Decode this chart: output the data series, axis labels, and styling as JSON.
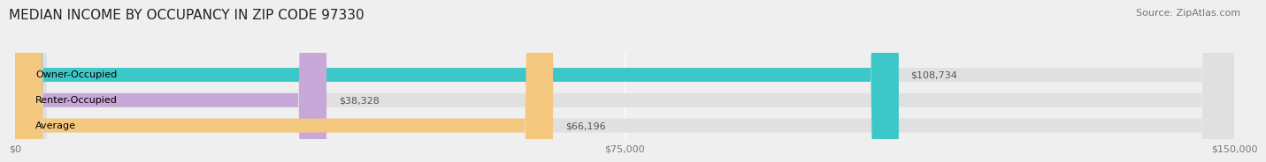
{
  "title": "MEDIAN INCOME BY OCCUPANCY IN ZIP CODE 97330",
  "source": "Source: ZipAtlas.com",
  "categories": [
    "Owner-Occupied",
    "Renter-Occupied",
    "Average"
  ],
  "values": [
    108734,
    38328,
    66196
  ],
  "bar_colors": [
    "#3CC8C8",
    "#C8A8D8",
    "#F5C880"
  ],
  "bar_labels": [
    "$108,734",
    "$38,328",
    "$66,196"
  ],
  "xlim": [
    0,
    150000
  ],
  "xticks": [
    0,
    75000,
    150000
  ],
  "xtick_labels": [
    "$0",
    "$75,000",
    "$150,000"
  ],
  "background_color": "#efefef",
  "bar_background_color": "#e0e0e0",
  "title_fontsize": 11,
  "source_fontsize": 8,
  "label_fontsize": 8,
  "tick_fontsize": 8
}
